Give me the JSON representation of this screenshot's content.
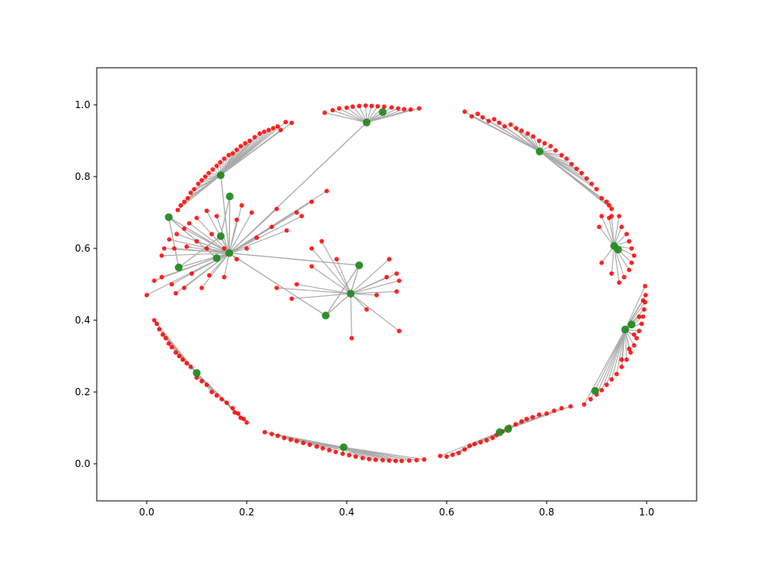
{
  "chart_data": {
    "type": "scatter",
    "title": "",
    "xlabel": "",
    "ylabel": "",
    "xlim": [
      -0.1,
      1.1
    ],
    "ylim": [
      -0.1,
      1.1
    ],
    "grid": false,
    "x_ticks": [
      "0.0",
      "0.2",
      "0.4",
      "0.6",
      "0.8",
      "1.0"
    ],
    "y_ticks": [
      "0.0",
      "0.2",
      "0.4",
      "0.6",
      "0.8",
      "1.0"
    ],
    "colors": {
      "hub": "#228b22",
      "leaf": "#ff0000",
      "edge": "#aaaaaa"
    },
    "hubs": [
      {
        "x": 0.148,
        "y": 0.804
      },
      {
        "x": 0.166,
        "y": 0.745
      },
      {
        "x": 0.044,
        "y": 0.687
      },
      {
        "x": 0.148,
        "y": 0.634
      },
      {
        "x": 0.165,
        "y": 0.587
      },
      {
        "x": 0.14,
        "y": 0.573
      },
      {
        "x": 0.064,
        "y": 0.547
      },
      {
        "x": 0.44,
        "y": 0.951
      },
      {
        "x": 0.472,
        "y": 0.98
      },
      {
        "x": 0.786,
        "y": 0.87
      },
      {
        "x": 0.935,
        "y": 0.607
      },
      {
        "x": 0.943,
        "y": 0.597
      },
      {
        "x": 0.425,
        "y": 0.553
      },
      {
        "x": 0.408,
        "y": 0.474
      },
      {
        "x": 0.358,
        "y": 0.413
      },
      {
        "x": 0.1,
        "y": 0.253
      },
      {
        "x": 0.957,
        "y": 0.374
      },
      {
        "x": 0.97,
        "y": 0.388
      },
      {
        "x": 0.897,
        "y": 0.203
      },
      {
        "x": 0.706,
        "y": 0.088
      },
      {
        "x": 0.723,
        "y": 0.097
      },
      {
        "x": 0.394,
        "y": 0.046
      }
    ],
    "groups": [
      {
        "hub": 0,
        "leaves": [
          [
            0.29,
            0.95
          ],
          [
            0.278,
            0.952
          ],
          [
            0.268,
            0.93
          ],
          [
            0.262,
            0.94
          ],
          [
            0.253,
            0.935
          ],
          [
            0.244,
            0.93
          ],
          [
            0.235,
            0.925
          ],
          [
            0.226,
            0.92
          ],
          [
            0.216,
            0.91
          ],
          [
            0.206,
            0.9
          ],
          [
            0.197,
            0.893
          ],
          [
            0.188,
            0.885
          ],
          [
            0.18,
            0.875
          ],
          [
            0.172,
            0.865
          ],
          [
            0.164,
            0.86
          ],
          [
            0.155,
            0.85
          ],
          [
            0.147,
            0.84
          ],
          [
            0.14,
            0.83
          ],
          [
            0.132,
            0.82
          ],
          [
            0.124,
            0.81
          ],
          [
            0.117,
            0.8
          ],
          [
            0.11,
            0.79
          ],
          [
            0.103,
            0.78
          ],
          [
            0.095,
            0.765
          ],
          [
            0.088,
            0.755
          ],
          [
            0.082,
            0.74
          ],
          [
            0.075,
            0.73
          ],
          [
            0.068,
            0.72
          ],
          [
            0.062,
            0.707
          ]
        ]
      },
      {
        "hub": 7,
        "leaves": [
          [
            0.356,
            0.978
          ],
          [
            0.372,
            0.985
          ],
          [
            0.385,
            0.99
          ],
          [
            0.4,
            0.992
          ],
          [
            0.412,
            0.995
          ],
          [
            0.425,
            0.997
          ],
          [
            0.438,
            0.998
          ],
          [
            0.45,
            0.997
          ],
          [
            0.462,
            0.996
          ],
          [
            0.475,
            0.995
          ],
          [
            0.49,
            0.993
          ],
          [
            0.503,
            0.99
          ],
          [
            0.515,
            0.988
          ],
          [
            0.528,
            0.987
          ],
          [
            0.545,
            0.99
          ]
        ]
      },
      {
        "hub": 9,
        "leaves": [
          [
            0.636,
            0.981
          ],
          [
            0.65,
            0.968
          ],
          [
            0.662,
            0.975
          ],
          [
            0.672,
            0.965
          ],
          [
            0.684,
            0.955
          ],
          [
            0.695,
            0.96
          ],
          [
            0.705,
            0.95
          ],
          [
            0.716,
            0.94
          ],
          [
            0.728,
            0.945
          ],
          [
            0.739,
            0.935
          ],
          [
            0.75,
            0.928
          ],
          [
            0.762,
            0.92
          ],
          [
            0.773,
            0.912
          ],
          [
            0.785,
            0.9
          ],
          [
            0.796,
            0.893
          ],
          [
            0.808,
            0.885
          ],
          [
            0.818,
            0.873
          ],
          [
            0.83,
            0.86
          ],
          [
            0.84,
            0.85
          ],
          [
            0.85,
            0.835
          ],
          [
            0.86,
            0.822
          ],
          [
            0.87,
            0.81
          ],
          [
            0.88,
            0.795
          ],
          [
            0.89,
            0.78
          ],
          [
            0.9,
            0.765
          ],
          [
            0.91,
            0.74
          ],
          [
            0.92,
            0.73
          ],
          [
            0.925,
            0.72
          ],
          [
            0.93,
            0.71
          ]
        ]
      },
      {
        "hub": 10,
        "leaves": [
          [
            0.905,
            0.66
          ],
          [
            0.91,
            0.69
          ],
          [
            0.925,
            0.685
          ],
          [
            0.93,
            0.69
          ],
          [
            0.945,
            0.69
          ],
          [
            0.95,
            0.66
          ],
          [
            0.96,
            0.64
          ],
          [
            0.965,
            0.62
          ],
          [
            0.97,
            0.6
          ],
          [
            0.975,
            0.58
          ],
          [
            0.97,
            0.56
          ],
          [
            0.965,
            0.54
          ],
          [
            0.955,
            0.52
          ],
          [
            0.945,
            0.505
          ],
          [
            0.93,
            0.53
          ],
          [
            0.91,
            0.56
          ]
        ]
      },
      {
        "hub": 15,
        "leaves": [
          [
            0.015,
            0.4
          ],
          [
            0.02,
            0.39
          ],
          [
            0.025,
            0.375
          ],
          [
            0.032,
            0.36
          ],
          [
            0.038,
            0.35
          ],
          [
            0.044,
            0.335
          ],
          [
            0.05,
            0.325
          ],
          [
            0.058,
            0.31
          ],
          [
            0.065,
            0.3
          ],
          [
            0.072,
            0.29
          ],
          [
            0.08,
            0.28
          ],
          [
            0.088,
            0.27
          ],
          [
            0.1,
            0.24
          ],
          [
            0.11,
            0.23
          ],
          [
            0.12,
            0.22
          ],
          [
            0.13,
            0.2
          ],
          [
            0.14,
            0.19
          ],
          [
            0.15,
            0.18
          ],
          [
            0.16,
            0.17
          ],
          [
            0.172,
            0.155
          ],
          [
            0.183,
            0.14
          ],
          [
            0.194,
            0.125
          ],
          [
            0.2,
            0.115
          ],
          [
            0.188,
            0.128
          ],
          [
            0.176,
            0.143
          ]
        ]
      },
      {
        "hub": 21,
        "leaves": [
          [
            0.236,
            0.088
          ],
          [
            0.25,
            0.083
          ],
          [
            0.262,
            0.078
          ],
          [
            0.275,
            0.072
          ],
          [
            0.288,
            0.067
          ],
          [
            0.3,
            0.063
          ],
          [
            0.313,
            0.058
          ],
          [
            0.326,
            0.053
          ],
          [
            0.34,
            0.048
          ],
          [
            0.352,
            0.043
          ],
          [
            0.365,
            0.038
          ],
          [
            0.378,
            0.033
          ],
          [
            0.392,
            0.028
          ],
          [
            0.405,
            0.024
          ],
          [
            0.418,
            0.02
          ],
          [
            0.432,
            0.016
          ],
          [
            0.445,
            0.013
          ],
          [
            0.458,
            0.011
          ],
          [
            0.472,
            0.01
          ],
          [
            0.485,
            0.009
          ],
          [
            0.498,
            0.008
          ],
          [
            0.51,
            0.008
          ],
          [
            0.525,
            0.009
          ],
          [
            0.54,
            0.01
          ],
          [
            0.555,
            0.012
          ]
        ]
      },
      {
        "hub": 19,
        "leaves": [
          [
            0.587,
            0.022
          ],
          [
            0.6,
            0.02
          ],
          [
            0.612,
            0.025
          ],
          [
            0.624,
            0.03
          ],
          [
            0.636,
            0.04
          ],
          [
            0.646,
            0.05
          ],
          [
            0.656,
            0.055
          ],
          [
            0.668,
            0.06
          ],
          [
            0.68,
            0.065
          ],
          [
            0.692,
            0.072
          ],
          [
            0.7,
            0.08
          ],
          [
            0.712,
            0.09
          ],
          [
            0.725,
            0.103
          ],
          [
            0.738,
            0.11
          ],
          [
            0.75,
            0.118
          ],
          [
            0.76,
            0.125
          ],
          [
            0.772,
            0.13
          ],
          [
            0.785,
            0.137
          ],
          [
            0.8,
            0.14
          ],
          [
            0.815,
            0.148
          ],
          [
            0.83,
            0.155
          ],
          [
            0.848,
            0.16
          ]
        ]
      },
      {
        "hub": 16,
        "leaves": [
          [
            0.875,
            0.165
          ],
          [
            0.888,
            0.18
          ],
          [
            0.9,
            0.193
          ],
          [
            0.91,
            0.205
          ],
          [
            0.92,
            0.22
          ],
          [
            0.93,
            0.235
          ],
          [
            0.94,
            0.25
          ],
          [
            0.95,
            0.27
          ],
          [
            0.96,
            0.29
          ],
          [
            0.968,
            0.31
          ],
          [
            0.975,
            0.33
          ],
          [
            0.98,
            0.35
          ],
          [
            0.985,
            0.37
          ],
          [
            0.99,
            0.39
          ],
          [
            0.993,
            0.41
          ],
          [
            0.995,
            0.43
          ],
          [
            0.997,
            0.45
          ],
          [
            0.998,
            0.47
          ],
          [
            0.997,
            0.495
          ],
          [
            0.993,
            0.455
          ],
          [
            0.985,
            0.41
          ],
          [
            0.975,
            0.36
          ],
          [
            0.965,
            0.32
          ],
          [
            0.95,
            0.29
          ]
        ]
      },
      {
        "hub": 4,
        "leaves": [
          [
            0.0,
            0.47
          ],
          [
            0.015,
            0.51
          ],
          [
            0.03,
            0.52
          ],
          [
            0.05,
            0.5
          ],
          [
            0.058,
            0.475
          ],
          [
            0.075,
            0.49
          ],
          [
            0.09,
            0.53
          ],
          [
            0.11,
            0.49
          ],
          [
            0.125,
            0.525
          ],
          [
            0.155,
            0.52
          ],
          [
            0.18,
            0.57
          ],
          [
            0.2,
            0.6
          ],
          [
            0.22,
            0.63
          ],
          [
            0.25,
            0.66
          ],
          [
            0.28,
            0.65
          ],
          [
            0.31,
            0.69
          ],
          [
            0.33,
            0.73
          ],
          [
            0.36,
            0.76
          ],
          [
            0.3,
            0.7
          ],
          [
            0.26,
            0.71
          ],
          [
            0.21,
            0.7
          ],
          [
            0.19,
            0.72
          ],
          [
            0.18,
            0.68
          ],
          [
            0.14,
            0.69
          ],
          [
            0.12,
            0.705
          ],
          [
            0.1,
            0.685
          ],
          [
            0.085,
            0.67
          ],
          [
            0.075,
            0.655
          ],
          [
            0.06,
            0.64
          ],
          [
            0.045,
            0.625
          ],
          [
            0.035,
            0.6
          ],
          [
            0.03,
            0.58
          ],
          [
            0.055,
            0.6
          ],
          [
            0.08,
            0.605
          ],
          [
            0.1,
            0.62
          ],
          [
            0.12,
            0.6
          ],
          [
            0.155,
            0.6
          ],
          [
            0.13,
            0.64
          ]
        ]
      },
      {
        "hub": 13,
        "leaves": [
          [
            0.26,
            0.49
          ],
          [
            0.29,
            0.46
          ],
          [
            0.3,
            0.5
          ],
          [
            0.33,
            0.55
          ],
          [
            0.33,
            0.6
          ],
          [
            0.35,
            0.62
          ],
          [
            0.38,
            0.57
          ],
          [
            0.41,
            0.35
          ],
          [
            0.44,
            0.43
          ],
          [
            0.46,
            0.47
          ],
          [
            0.48,
            0.52
          ],
          [
            0.485,
            0.57
          ],
          [
            0.5,
            0.53
          ],
          [
            0.505,
            0.51
          ],
          [
            0.5,
            0.48
          ],
          [
            0.505,
            0.37
          ]
        ]
      }
    ],
    "hub_links": [
      [
        0,
        4
      ],
      [
        1,
        4
      ],
      [
        3,
        4
      ],
      [
        5,
        4
      ],
      [
        6,
        4
      ],
      [
        2,
        4
      ],
      [
        3,
        6
      ],
      [
        1,
        3
      ],
      [
        2,
        6
      ],
      [
        2,
        5
      ],
      [
        4,
        7
      ],
      [
        7,
        8
      ],
      [
        10,
        11
      ],
      [
        12,
        13
      ],
      [
        13,
        14
      ],
      [
        4,
        12
      ],
      [
        4,
        14
      ],
      [
        17,
        16
      ],
      [
        19,
        20
      ],
      [
        14,
        12
      ]
    ]
  }
}
